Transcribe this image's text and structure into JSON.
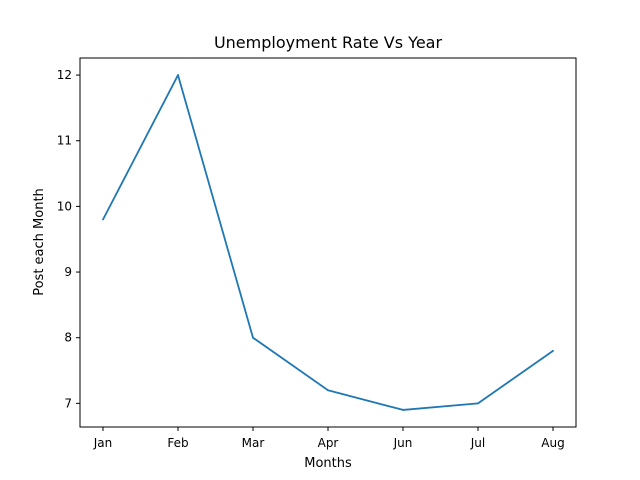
{
  "chart_data": {
    "type": "line",
    "title": "Unemployment Rate Vs Year",
    "xlabel": "Months",
    "ylabel": "Post each Month",
    "categories": [
      "Jan",
      "Feb",
      "Mar",
      "Apr",
      "Jun",
      "Jul",
      "Aug"
    ],
    "series": [
      {
        "values": [
          9.8,
          12.0,
          8.0,
          7.2,
          6.9,
          7.0,
          7.8
        ],
        "color": "#1f77b4"
      }
    ],
    "ylim": [
      6.64,
      12.26
    ],
    "yticks": [
      7,
      8,
      9,
      10,
      11,
      12
    ],
    "grid": false,
    "legend": "none"
  }
}
